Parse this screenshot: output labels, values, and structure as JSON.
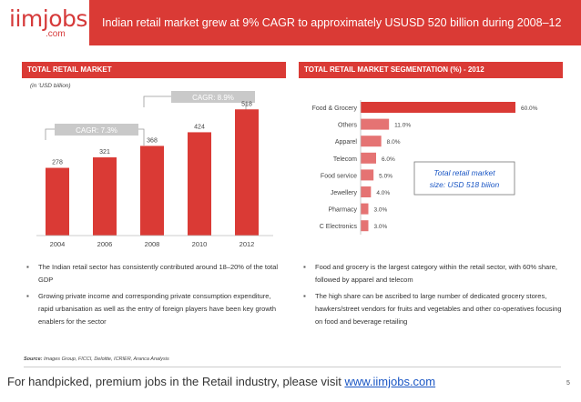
{
  "header": {
    "logo_main": "iimjobs",
    "logo_sub": ".com",
    "title": "Indian retail market grew at 9% CAGR to approximately USUSD 520 billion during 2008–12"
  },
  "left": {
    "section_title": "TOTAL RETAIL MARKET",
    "unit_note": "(in 'USD billion)",
    "bullets": [
      "The Indian retail sector has consistently contributed around 18–20% of the total GDP",
      "Growing private income and corresponding private consumption expenditure, rapid urbanisation as well as the entry of foreign players have been key growth enablers for the sector"
    ]
  },
  "right": {
    "section_title": "TOTAL RETAIL MARKET SEGMENTATION (%) - 2012",
    "callout": "Total retail market size: USD 518 biiion",
    "bullets": [
      "Food and grocery is the largest category within the retail sector, with 60% share, followed by apparel and telecom",
      "The high share can be ascribed to large number of dedicated grocery stores, hawkers/street vendors for fruits and vegetables and other co-operatives focusing on food and beverage retailing"
    ]
  },
  "source_label": "Source:",
  "source_text": "Images Group, FICCI, Deloitte, ICRIER, Aranca Analysis",
  "footer": {
    "text": "For handpicked, premium jobs in the Retail industry, please visit ",
    "link": "www.iimjobs.com",
    "page": "5"
  },
  "colors": {
    "accent": "#da3a35",
    "bar": "#da3a35",
    "bar_other": "#e57373",
    "callout_text": "#1a56c4"
  },
  "chart_data": [
    {
      "type": "bar",
      "categories": [
        "2004",
        "2006",
        "2008",
        "2010",
        "2012"
      ],
      "values": [
        278,
        321,
        368,
        424,
        518
      ],
      "ylim": [
        0,
        560
      ],
      "annotations": [
        "CAGR: 7.3%",
        "CAGR: 8.9%"
      ]
    },
    {
      "type": "bar",
      "orientation": "horizontal",
      "categories": [
        "Food & Grocery",
        "Others",
        "Apparel",
        "Telecom",
        "Food service",
        "Jewellery",
        "Pharmacy",
        "C Electronics"
      ],
      "values": [
        60.0,
        11.0,
        8.0,
        6.0,
        5.0,
        4.0,
        3.0,
        3.0
      ],
      "value_labels": [
        "60.0%",
        "11.0%",
        "8.0%",
        "6.0%",
        "5.0%",
        "4.0%",
        "3.0%",
        "3.0%"
      ],
      "xlim": [
        0,
        60
      ]
    }
  ]
}
